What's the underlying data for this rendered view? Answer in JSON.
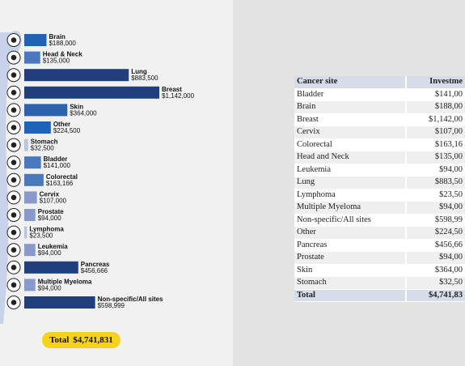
{
  "chart_data": {
    "type": "bar",
    "orientation": "horizontal",
    "categories": [
      "Brain",
      "Head & Neck",
      "Lung",
      "Breast",
      "Skin",
      "Other",
      "Stomach",
      "Bladder",
      "Colorectal",
      "Cervix",
      "Prostate",
      "Lymphoma",
      "Leukemia",
      "Pancreas",
      "Multiple Myeloma",
      "Non-specific/All sites"
    ],
    "values": [
      188000,
      135000,
      883500,
      1142000,
      364000,
      224500,
      32500,
      141000,
      163166,
      107000,
      94000,
      23500,
      94000,
      456666,
      94000,
      598999
    ],
    "value_labels": [
      "$188,000",
      "$135,000",
      "$883,500",
      "$1,142,000",
      "$364,000",
      "$224,500",
      "$32,500",
      "$141,000",
      "$163,166",
      "$107,000",
      "$94,000",
      "$23,500",
      "$94,000",
      "$456,666",
      "$94,000",
      "$598,999"
    ],
    "icons": [
      "brain-icon",
      "head-icon",
      "lungs-icon",
      "breast-icon",
      "skin-icon",
      "ribbon-icon",
      "stomach-icon",
      "bladder-icon",
      "colon-icon",
      "uterus-icon",
      "prostate-icon",
      "lymph-icon",
      "blood-drop-icon",
      "pancreas-icon",
      "bone-marrow-icon",
      "person-icon"
    ],
    "bar_colors": [
      "#1f63b6",
      "#4a78bd",
      "#203f7c",
      "#203f7c",
      "#2d63ad",
      "#1f63b6",
      "#b9c4e0",
      "#4a78bd",
      "#4a78bd",
      "#8899cc",
      "#8899cc",
      "#b9c4e0",
      "#8899cc",
      "#203f7c",
      "#8899cc",
      "#203f7c"
    ],
    "total_label": "Total",
    "total_value": "$4,741,831"
  },
  "colors": {
    "total_pill": "#f6d21d",
    "table_header": "#d6dce8",
    "silhouette": "#c7d3ea"
  },
  "table": {
    "headers": [
      "Cancer site",
      "Investme"
    ],
    "rows": [
      [
        "Bladder",
        "$141,00"
      ],
      [
        "Brain",
        "$188,00"
      ],
      [
        "Breast",
        "$1,142,00"
      ],
      [
        "Cervix",
        "$107,00"
      ],
      [
        "Colorectal",
        "$163,16"
      ],
      [
        "Head and Neck",
        "$135,00"
      ],
      [
        "Leukemia",
        "$94,00"
      ],
      [
        "Lung",
        "$883,50"
      ],
      [
        "Lymphoma",
        "$23,50"
      ],
      [
        "Multiple Myeloma",
        "$94,00"
      ],
      [
        "Non-specific/All sites",
        "$598,99"
      ],
      [
        "Other",
        "$224,50"
      ],
      [
        "Pancreas",
        "$456,66"
      ],
      [
        "Prostate",
        "$94,00"
      ],
      [
        "Skin",
        "$364,00"
      ],
      [
        "Stomach",
        "$32,50"
      ]
    ],
    "total": [
      "Total",
      "$4,741,83"
    ]
  }
}
